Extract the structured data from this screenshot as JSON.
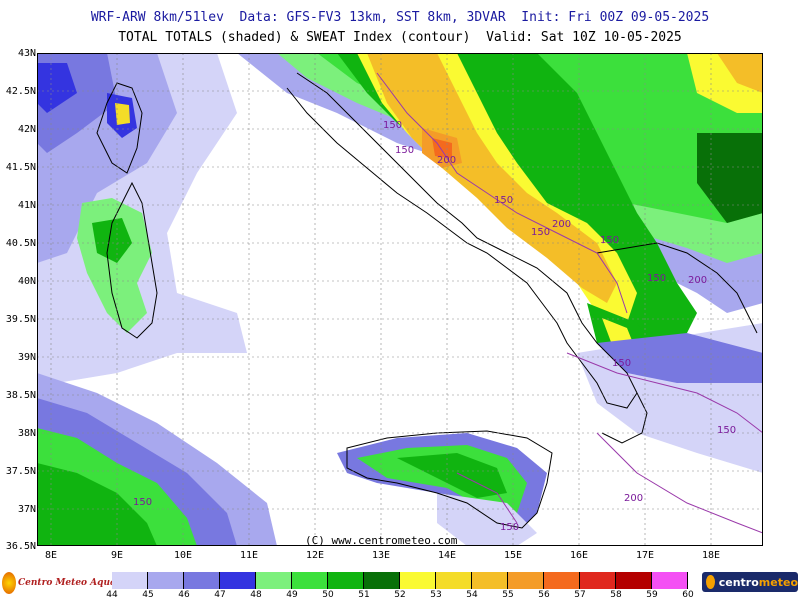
{
  "header": {
    "line1": "WRF-ARW 8km/51lev  Data: GFS-FV3 13km, SST 8km, 3DVAR  Init: Fri 00Z 09-05-2025",
    "line2": "TOTAL TOTALS (shaded) & SWEAT Index (contour)  Valid: Sat 10Z 10-05-2025"
  },
  "axes": {
    "lat_labels": [
      "43N",
      "42.5N",
      "42N",
      "41.5N",
      "41N",
      "40.5N",
      "40N",
      "39.5N",
      "39N",
      "38.5N",
      "38N",
      "37.5N",
      "37N",
      "36.5N"
    ],
    "lon_labels": [
      "8E",
      "9E",
      "10E",
      "11E",
      "12E",
      "13E",
      "14E",
      "15E",
      "16E",
      "17E",
      "18E"
    ]
  },
  "copyright": "(C) www.centrometeo.com",
  "contour_labels": [
    {
      "text": "150"
    },
    {
      "text": "150"
    },
    {
      "text": "200"
    },
    {
      "text": "150"
    },
    {
      "text": "200"
    },
    {
      "text": "150"
    },
    {
      "text": "150"
    },
    {
      "text": "150"
    },
    {
      "text": "200"
    },
    {
      "text": "150"
    },
    {
      "text": "150"
    },
    {
      "text": "200"
    },
    {
      "text": "150"
    },
    {
      "text": "150"
    }
  ],
  "colorbar": {
    "labels": [
      "44",
      "45",
      "46",
      "47",
      "48",
      "49",
      "50",
      "51",
      "52",
      "53",
      "54",
      "55",
      "56",
      "57",
      "58",
      "59",
      "60"
    ],
    "colors": [
      "#d4d4f8",
      "#a8a8ee",
      "#7878e0",
      "#3434e0",
      "#7cf07c",
      "#3ce03c",
      "#10b410",
      "#087008",
      "#fafa32",
      "#f4dc28",
      "#f4be28",
      "#f49c28",
      "#f46a1e",
      "#e0281e",
      "#b40000",
      "#f450f4",
      "#c800c8"
    ]
  },
  "logos": {
    "left_text": "Centro Meteo Aquaro",
    "right_text_a": "centro",
    "right_text_b": "meteo"
  },
  "colors": {
    "background_sea": "#ffffff",
    "land_outline": "#000000",
    "contour": "#9a3aaa",
    "title_blue": "#1a1aa0"
  }
}
